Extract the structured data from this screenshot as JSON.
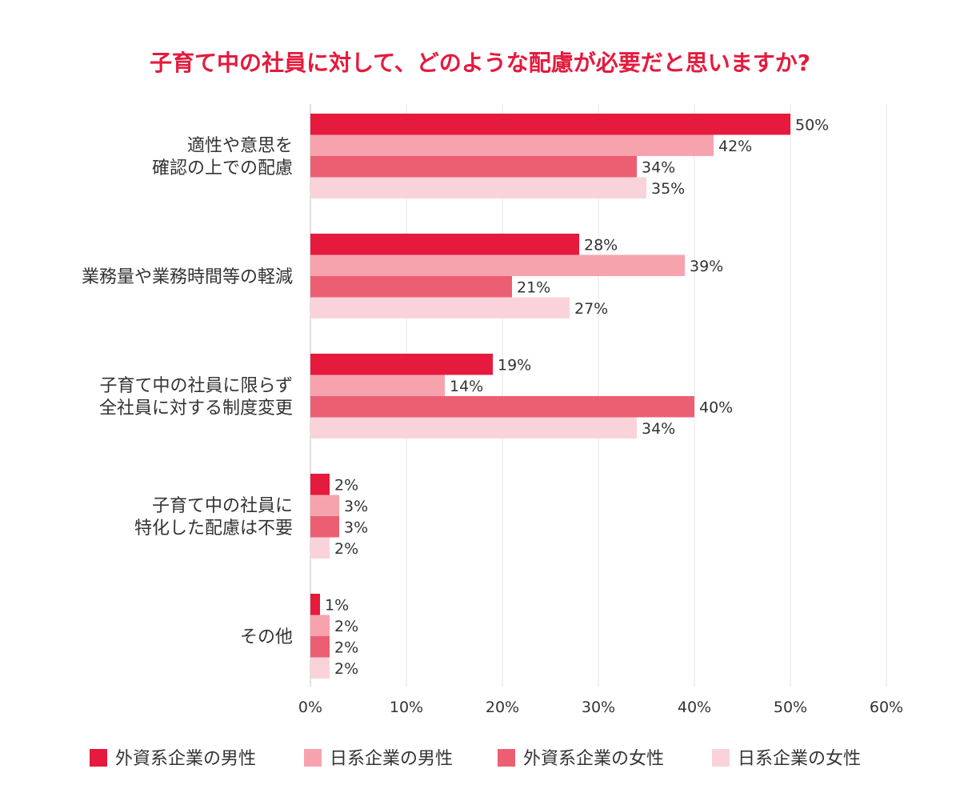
{
  "chart_data": {
    "type": "bar",
    "orientation": "horizontal",
    "title": "子育て中の社員に対して、どのような配慮が必要だと思いますか?",
    "categories": [
      "適性や意思を\n確認の上での配慮",
      "業務量や業務時間等の軽減",
      "子育て中の社員に限らず\n全社員に対する制度変更",
      "子育て中の社員に\n特化した配慮は不要",
      "その他"
    ],
    "series": [
      {
        "name": "外資系企業の男性",
        "color": "#e51a3d",
        "values": [
          50,
          28,
          19,
          2,
          1
        ]
      },
      {
        "name": "日系企業の男性",
        "color": "#f6a3ae",
        "values": [
          42,
          39,
          14,
          3,
          2
        ]
      },
      {
        "name": "外資系企業の女性",
        "color": "#ec5f73",
        "values": [
          34,
          21,
          40,
          3,
          2
        ]
      },
      {
        "name": "日系企業の女性",
        "color": "#fad3da",
        "values": [
          35,
          27,
          34,
          2,
          2
        ]
      }
    ],
    "xlim": [
      0,
      60
    ],
    "xticks": [
      0,
      10,
      20,
      30,
      40,
      50,
      60
    ],
    "tick_suffix": "%",
    "value_suffix": "%",
    "grid": true,
    "legend_position": "bottom",
    "title_color": "#e51a3d"
  }
}
